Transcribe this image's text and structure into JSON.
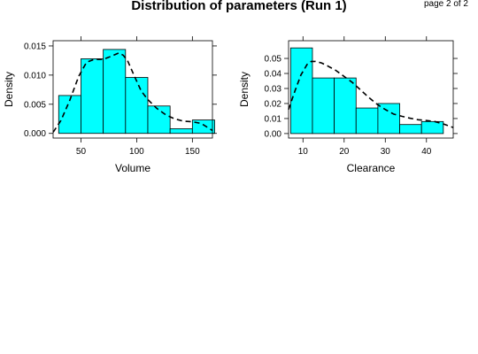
{
  "page": {
    "title": "Distribution of parameters (Run 1)",
    "page_indicator": "page 2 of 2"
  },
  "colors": {
    "bar_fill": "#00FFFF",
    "bar_stroke": "#000000",
    "density_line": "#000000"
  },
  "chart_data": [
    {
      "type": "bar",
      "subtype": "histogram-with-density",
      "xlabel": "Volume",
      "ylabel": "Density",
      "xlim": [
        25,
        168
      ],
      "ylim": [
        -0.0008,
        0.0159
      ],
      "xticks": [
        50,
        100,
        150
      ],
      "xtick_labels": [
        "50",
        "100",
        "150"
      ],
      "yticks": [
        0.0,
        0.005,
        0.01,
        0.015
      ],
      "ytick_labels": [
        "0.000",
        "0.005",
        "0.010",
        "0.015"
      ],
      "bins": [
        {
          "x0": 30,
          "x1": 50,
          "value": 0.0065
        },
        {
          "x0": 50,
          "x1": 70,
          "value": 0.0128
        },
        {
          "x0": 70,
          "x1": 90,
          "value": 0.0144
        },
        {
          "x0": 90,
          "x1": 110,
          "value": 0.0096
        },
        {
          "x0": 110,
          "x1": 130,
          "value": 0.0047
        },
        {
          "x0": 130,
          "x1": 150,
          "value": 0.0008
        },
        {
          "x0": 150,
          "x1": 170,
          "value": 0.0023
        }
      ],
      "density": {
        "x": [
          25,
          32,
          40,
          48,
          55,
          62,
          70,
          78,
          84,
          88,
          92,
          98,
          104,
          110,
          118,
          126,
          134,
          142,
          150,
          158,
          168
        ],
        "y": [
          0.0002,
          0.0022,
          0.0057,
          0.0098,
          0.0122,
          0.0127,
          0.0127,
          0.0133,
          0.0138,
          0.0134,
          0.0124,
          0.0098,
          0.0073,
          0.0058,
          0.0043,
          0.0032,
          0.0025,
          0.0021,
          0.002,
          0.0017,
          0.0005
        ]
      },
      "grid": false
    },
    {
      "type": "bar",
      "subtype": "histogram-with-density",
      "xlabel": "Clearance",
      "ylabel": "Density",
      "xlim": [
        6.5,
        46.5
      ],
      "ylim": [
        -0.003,
        0.0618
      ],
      "xticks": [
        10,
        20,
        30,
        40
      ],
      "xtick_labels": [
        "10",
        "20",
        "30",
        "40"
      ],
      "yticks": [
        0.0,
        0.01,
        0.02,
        0.03,
        0.04,
        0.05
      ],
      "ytick_labels": [
        "0.00",
        "0.01",
        "0.02",
        "0.03",
        "0.04",
        "0.05"
      ],
      "bins": [
        {
          "x0": 7,
          "x1": 12.3,
          "value": 0.057
        },
        {
          "x0": 12.3,
          "x1": 17.6,
          "value": 0.037
        },
        {
          "x0": 17.6,
          "x1": 22.9,
          "value": 0.037
        },
        {
          "x0": 22.9,
          "x1": 28.2,
          "value": 0.017
        },
        {
          "x0": 28.2,
          "x1": 33.5,
          "value": 0.02
        },
        {
          "x0": 33.5,
          "x1": 38.8,
          "value": 0.006
        },
        {
          "x0": 38.8,
          "x1": 44.1,
          "value": 0.008
        }
      ],
      "density": {
        "x": [
          6.5,
          8,
          9.5,
          11,
          12,
          13,
          14.5,
          16,
          18,
          20,
          22,
          24,
          26,
          28,
          30,
          32,
          34,
          36,
          38,
          40,
          42,
          44,
          46.5
        ],
        "y": [
          0.016,
          0.028,
          0.039,
          0.046,
          0.048,
          0.048,
          0.047,
          0.045,
          0.042,
          0.038,
          0.034,
          0.029,
          0.024,
          0.0195,
          0.016,
          0.013,
          0.0115,
          0.0102,
          0.0092,
          0.0087,
          0.008,
          0.0065,
          0.004
        ]
      },
      "grid": false
    }
  ]
}
